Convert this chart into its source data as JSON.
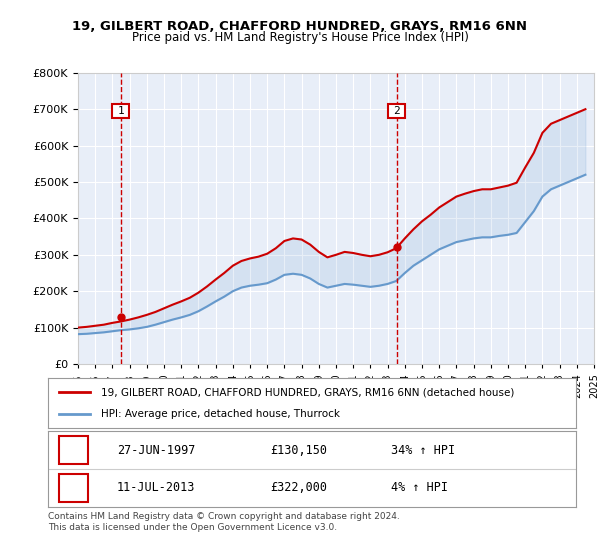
{
  "title": "19, GILBERT ROAD, CHAFFORD HUNDRED, GRAYS, RM16 6NN",
  "subtitle": "Price paid vs. HM Land Registry's House Price Index (HPI)",
  "legend_line1": "19, GILBERT ROAD, CHAFFORD HUNDRED, GRAYS, RM16 6NN (detached house)",
  "legend_line2": "HPI: Average price, detached house, Thurrock",
  "sale1_label": "1",
  "sale1_date": "27-JUN-1997",
  "sale1_price": "£130,150",
  "sale1_hpi": "34% ↑ HPI",
  "sale2_label": "2",
  "sale2_date": "11-JUL-2013",
  "sale2_price": "£322,000",
  "sale2_hpi": "4% ↑ HPI",
  "footer": "Contains HM Land Registry data © Crown copyright and database right 2024.\nThis data is licensed under the Open Government Licence v3.0.",
  "ylim": [
    0,
    800000
  ],
  "yticks": [
    0,
    100000,
    200000,
    300000,
    400000,
    500000,
    600000,
    700000,
    800000
  ],
  "bg_color": "#e8eef8",
  "plot_bg_color": "#e8eef8",
  "red_color": "#cc0000",
  "blue_color": "#6699cc",
  "dashed_red": "#cc0000",
  "marker_box_color": "#cc0000",
  "sale1_year": 1997.49,
  "sale1_value": 130150,
  "sale2_year": 2013.53,
  "sale2_value": 322000,
  "hpi_years": [
    1995,
    1995.5,
    1996,
    1996.5,
    1997,
    1997.5,
    1998,
    1998.5,
    1999,
    1999.5,
    2000,
    2000.5,
    2001,
    2001.5,
    2002,
    2002.5,
    2003,
    2003.5,
    2004,
    2004.5,
    2005,
    2005.5,
    2006,
    2006.5,
    2007,
    2007.5,
    2008,
    2008.5,
    2009,
    2009.5,
    2010,
    2010.5,
    2011,
    2011.5,
    2012,
    2012.5,
    2013,
    2013.5,
    2014,
    2014.5,
    2015,
    2015.5,
    2016,
    2016.5,
    2017,
    2017.5,
    2018,
    2018.5,
    2019,
    2019.5,
    2020,
    2020.5,
    2021,
    2021.5,
    2022,
    2022.5,
    2023,
    2023.5,
    2024,
    2024.5
  ],
  "hpi_values": [
    82000,
    83000,
    85000,
    87000,
    90000,
    93000,
    95000,
    98000,
    102000,
    108000,
    115000,
    122000,
    128000,
    135000,
    145000,
    158000,
    172000,
    185000,
    200000,
    210000,
    215000,
    218000,
    222000,
    232000,
    245000,
    248000,
    245000,
    235000,
    220000,
    210000,
    215000,
    220000,
    218000,
    215000,
    212000,
    215000,
    220000,
    228000,
    250000,
    270000,
    285000,
    300000,
    315000,
    325000,
    335000,
    340000,
    345000,
    348000,
    348000,
    352000,
    355000,
    360000,
    390000,
    420000,
    460000,
    480000,
    490000,
    500000,
    510000,
    520000
  ],
  "red_years": [
    1995,
    1995.5,
    1996,
    1996.5,
    1997,
    1997.5,
    1998,
    1998.5,
    1999,
    1999.5,
    2000,
    2000.5,
    2001,
    2001.5,
    2002,
    2002.5,
    2003,
    2003.5,
    2004,
    2004.5,
    2005,
    2005.5,
    2006,
    2006.5,
    2007,
    2007.5,
    2008,
    2008.5,
    2009,
    2009.5,
    2010,
    2010.5,
    2011,
    2011.5,
    2012,
    2012.5,
    2013,
    2013.5,
    2014,
    2014.5,
    2015,
    2015.5,
    2016,
    2016.5,
    2017,
    2017.5,
    2018,
    2018.5,
    2019,
    2019.5,
    2020,
    2020.5,
    2021,
    2021.5,
    2022,
    2022.5,
    2023,
    2023.5,
    2024,
    2024.5
  ],
  "red_values": [
    100000,
    102000,
    105000,
    108000,
    113000,
    117000,
    122000,
    128000,
    135000,
    143000,
    153000,
    163000,
    172000,
    182000,
    196000,
    213000,
    232000,
    250000,
    270000,
    283000,
    290000,
    295000,
    303000,
    318000,
    338000,
    345000,
    342000,
    328000,
    308000,
    293000,
    300000,
    308000,
    305000,
    300000,
    296000,
    300000,
    307000,
    318000,
    345000,
    370000,
    392000,
    410000,
    430000,
    445000,
    460000,
    468000,
    475000,
    480000,
    480000,
    485000,
    490000,
    498000,
    540000,
    580000,
    635000,
    660000,
    670000,
    680000,
    690000,
    700000
  ]
}
